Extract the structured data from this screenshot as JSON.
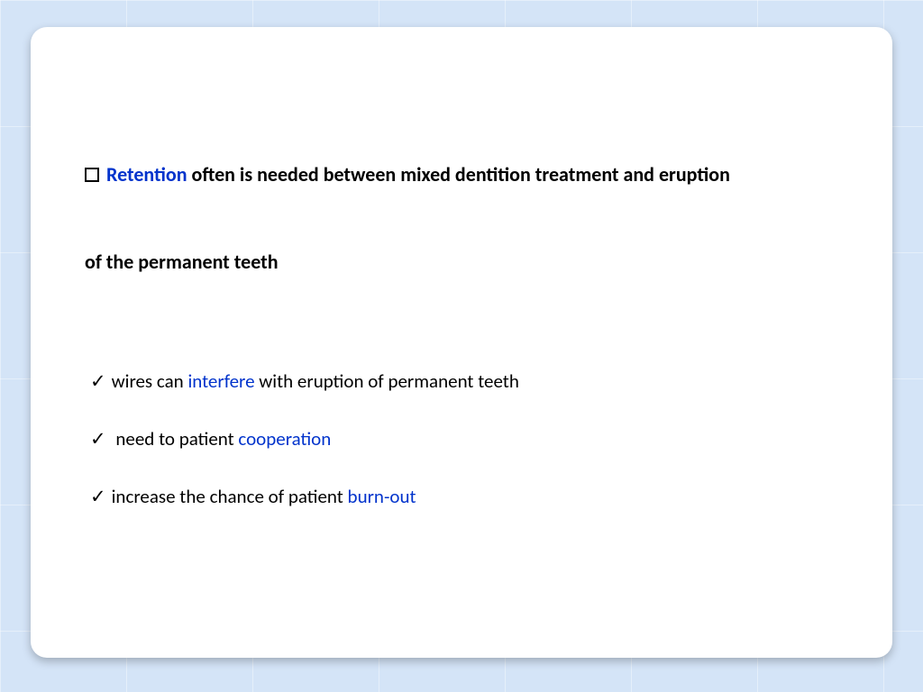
{
  "colors": {
    "background": "#d4e4f7",
    "slide_bg": "#ffffff",
    "text": "#000000",
    "highlight": "#0033cc"
  },
  "typography": {
    "font_family": "Calibri",
    "main_fontsize_pt": 17,
    "sub_fontsize_pt": 16,
    "main_weight": "bold",
    "sub_weight": "normal"
  },
  "layout": {
    "slide_width": 956,
    "slide_height": 700,
    "slide_radius": 18,
    "outer_margin": 32
  },
  "main": {
    "marker": "square-outline",
    "highlight_word": "Retention",
    "rest_line1": " often is needed between mixed dentition treatment  and eruption",
    "line2": "of the permanent teeth"
  },
  "subs": [
    {
      "marker": "✓",
      "pre": "wires can ",
      "hl": "interfere",
      "post": " with eruption of permanent teeth"
    },
    {
      "marker": "✓",
      "pre": " need to patient ",
      "hl": "cooperation",
      "post": ""
    },
    {
      "marker": "✓",
      "pre": "increase the chance of patient ",
      "hl": "burn-out",
      "post": ""
    }
  ]
}
